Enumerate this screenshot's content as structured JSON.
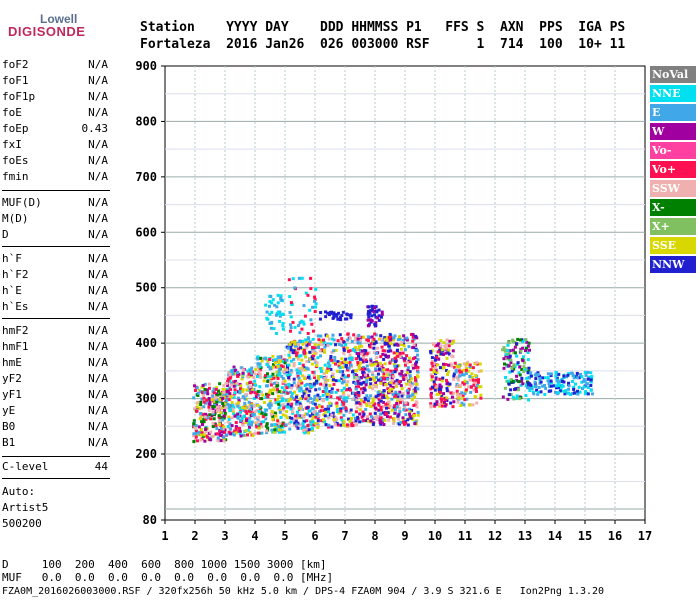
{
  "logo": {
    "line1": "Lowell",
    "line2": "DIGISONDE"
  },
  "header": {
    "row1": "Station    YYYY DAY    DDD HHMMSS P1   FFS S  AXN  PPS  IGA PS",
    "row2": "Fortaleza  2016 Jan26  026 003000 RSF      1  714  100  10+ 11"
  },
  "params_group1": [
    {
      "name": "foF2",
      "value": "N/A"
    },
    {
      "name": "foF1",
      "value": "N/A"
    },
    {
      "name": "foF1p",
      "value": "N/A"
    },
    {
      "name": "foE",
      "value": "N/A"
    },
    {
      "name": "foEp",
      "value": "0.43"
    },
    {
      "name": "fxI",
      "value": "N/A"
    },
    {
      "name": "foEs",
      "value": "N/A"
    },
    {
      "name": "fmin",
      "value": "N/A"
    }
  ],
  "params_group2": [
    {
      "name": "MUF(D)",
      "value": "N/A"
    },
    {
      "name": "M(D)",
      "value": "N/A"
    },
    {
      "name": "D",
      "value": "N/A"
    }
  ],
  "params_group3": [
    {
      "name": "h`F",
      "value": "N/A"
    },
    {
      "name": "h`F2",
      "value": "N/A"
    },
    {
      "name": "h`E",
      "value": "N/A"
    },
    {
      "name": "h`Es",
      "value": "N/A"
    }
  ],
  "params_group4": [
    {
      "name": "hmF2",
      "value": "N/A"
    },
    {
      "name": "hmF1",
      "value": "N/A"
    },
    {
      "name": "hmE",
      "value": "N/A"
    },
    {
      "name": "yF2",
      "value": "N/A"
    },
    {
      "name": "yF1",
      "value": "N/A"
    },
    {
      "name": "yE",
      "value": "N/A"
    },
    {
      "name": "B0",
      "value": "N/A"
    },
    {
      "name": "B1",
      "value": "N/A"
    }
  ],
  "clevel": {
    "name": "C-level",
    "value": "44"
  },
  "auto": {
    "line1": "Auto:",
    "line2": "Artist5",
    "line3": "500200"
  },
  "footer": {
    "d_row": "D     100  200  400  600  800 1000 1500 3000 [km]",
    "muf_row": "MUF   0.0  0.0  0.0  0.0  0.0  0.0  0.0  0.0 [MHz]",
    "info_row": "FZA0M_2016026003000.RSF / 320fx256h 50 kHz 5.0 km / DPS-4 FZA0M 904 / 3.9 S 321.6 E   Ion2Png 1.3.20"
  },
  "legend": [
    {
      "label": "NoVal",
      "color": "#808080"
    },
    {
      "label": "NNE",
      "color": "#00e0f0"
    },
    {
      "label": "E",
      "color": "#40a8e8"
    },
    {
      "label": "W",
      "color": "#a000a0"
    },
    {
      "label": "Vo-",
      "color": "#ff40a0"
    },
    {
      "label": "Vo+",
      "color": "#ff1050"
    },
    {
      "label": "SSW",
      "color": "#f0b0b0"
    },
    {
      "label": "X-",
      "color": "#008000"
    },
    {
      "label": "X+",
      "color": "#80c060"
    },
    {
      "label": "SSE",
      "color": "#d8d800"
    },
    {
      "label": "NNW",
      "color": "#2020d0"
    }
  ],
  "chart_data": {
    "type": "scatter",
    "xlim": [
      1,
      17
    ],
    "ylim": [
      80,
      900
    ],
    "x_ticks": [
      "1",
      "2",
      "3",
      "4",
      "5",
      "6",
      "7",
      "8",
      "9",
      "10",
      "11",
      "12",
      "13",
      "14",
      "15",
      "16",
      "17"
    ],
    "y_ticks": [
      "80",
      "200",
      "300",
      "400",
      "500",
      "600",
      "700",
      "800",
      "900"
    ],
    "grid": true,
    "legend_position": "right",
    "clusters": [
      {
        "x": [
          1.9,
          3.0
        ],
        "y": [
          225,
          330
        ],
        "colors": [
          "#ff1050",
          "#40a8e8",
          "#008000",
          "#a000a0",
          "#d8d800",
          "#f0b0b0"
        ],
        "n": 260
      },
      {
        "x": [
          3.0,
          4.0
        ],
        "y": [
          235,
          360
        ],
        "colors": [
          "#ff1050",
          "#40a8e8",
          "#f0b0b0",
          "#d8d800",
          "#a000a0",
          "#00e0f0"
        ],
        "n": 260
      },
      {
        "x": [
          4.0,
          5.0
        ],
        "y": [
          240,
          380
        ],
        "colors": [
          "#40a8e8",
          "#ff1050",
          "#f0b0b0",
          "#d8d800",
          "#00e0f0",
          "#008000"
        ],
        "n": 260
      },
      {
        "x": [
          4.3,
          4.9
        ],
        "y": [
          420,
          490
        ],
        "colors": [
          "#40a8e8",
          "#00e0f0"
        ],
        "n": 40
      },
      {
        "x": [
          5.0,
          6.0
        ],
        "y": [
          240,
          410
        ],
        "colors": [
          "#40a8e8",
          "#00e0f0",
          "#ff1050",
          "#d8d800",
          "#f0b0b0",
          "#2020d0"
        ],
        "n": 300
      },
      {
        "x": [
          5.0,
          6.0
        ],
        "y": [
          410,
          520
        ],
        "colors": [
          "#40a8e8",
          "#ff1050",
          "#00e0f0"
        ],
        "n": 45
      },
      {
        "x": [
          6.0,
          7.3
        ],
        "y": [
          250,
          420
        ],
        "colors": [
          "#40a8e8",
          "#ff1050",
          "#d8d800",
          "#f0b0b0",
          "#00e0f0",
          "#2020d0"
        ],
        "n": 320
      },
      {
        "x": [
          6.1,
          7.2
        ],
        "y": [
          445,
          460
        ],
        "colors": [
          "#2020d0"
        ],
        "n": 30
      },
      {
        "x": [
          7.3,
          8.3
        ],
        "y": [
          255,
          420
        ],
        "colors": [
          "#ff1050",
          "#d8d800",
          "#40a8e8",
          "#f0b0b0",
          "#2020d0",
          "#a000a0"
        ],
        "n": 320
      },
      {
        "x": [
          7.7,
          8.2
        ],
        "y": [
          430,
          470
        ],
        "colors": [
          "#2020d0",
          "#a000a0"
        ],
        "n": 40
      },
      {
        "x": [
          8.3,
          9.4
        ],
        "y": [
          255,
          420
        ],
        "colors": [
          "#ff1050",
          "#d8d800",
          "#f0b0b0",
          "#2020d0",
          "#a000a0",
          "#40a8e8"
        ],
        "n": 320
      },
      {
        "x": [
          9.8,
          10.6
        ],
        "y": [
          285,
          410
        ],
        "colors": [
          "#d8d800",
          "#2020d0",
          "#ff1050",
          "#f0b0b0",
          "#a000a0"
        ],
        "n": 160
      },
      {
        "x": [
          10.6,
          11.5
        ],
        "y": [
          290,
          370
        ],
        "colors": [
          "#f0b0b0",
          "#d8d800",
          "#ff1050",
          "#40a8e8"
        ],
        "n": 110
      },
      {
        "x": [
          12.2,
          13.1
        ],
        "y": [
          300,
          410
        ],
        "colors": [
          "#2020d0",
          "#00e0f0",
          "#008000",
          "#80c060",
          "#a000a0"
        ],
        "n": 130
      },
      {
        "x": [
          13.0,
          15.2
        ],
        "y": [
          310,
          350
        ],
        "colors": [
          "#2020d0",
          "#00e0f0",
          "#40a8e8"
        ],
        "n": 160
      }
    ]
  }
}
